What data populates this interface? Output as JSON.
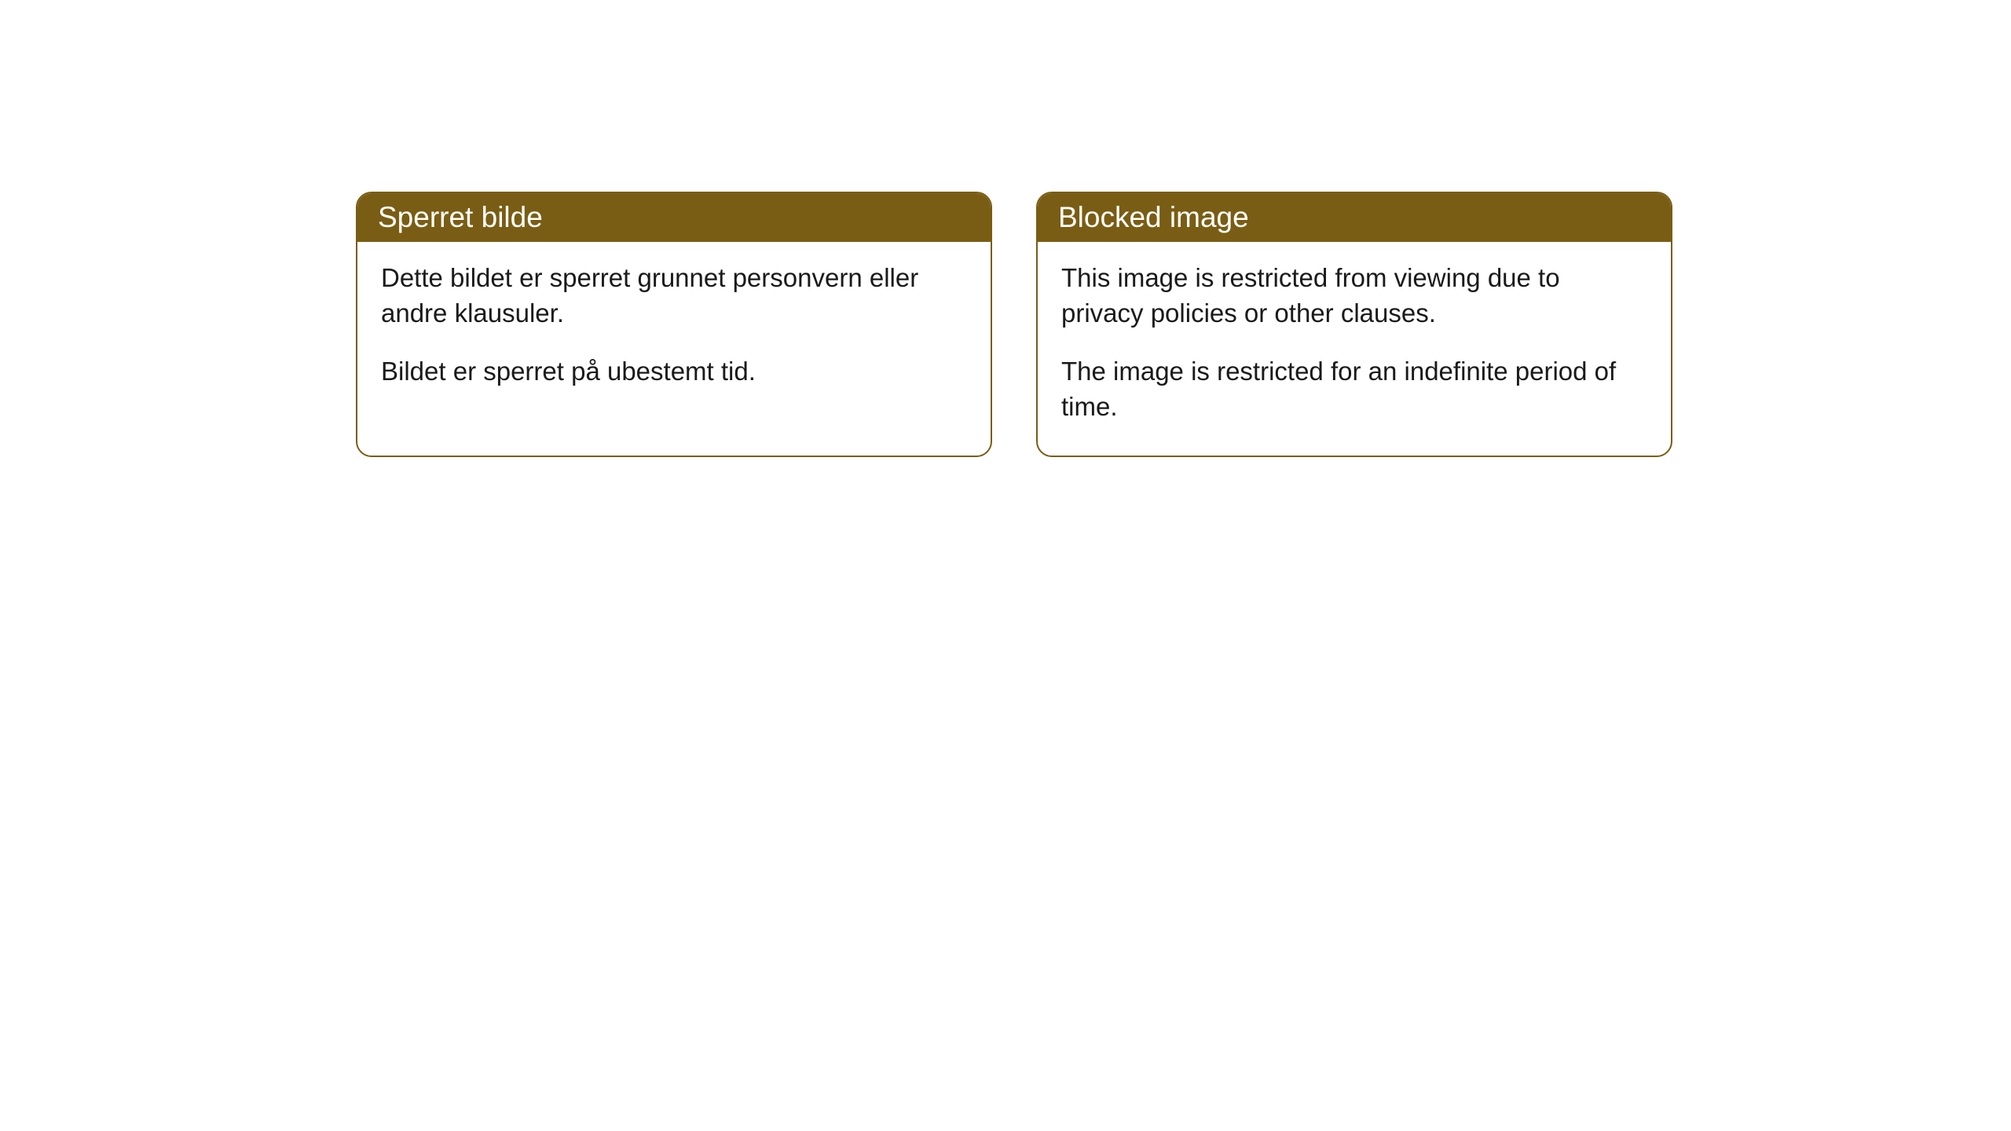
{
  "cards": [
    {
      "title": "Sperret bilde",
      "paragraph1": "Dette bildet er sperret grunnet personvern eller andre klausuler.",
      "paragraph2": "Bildet er sperret på ubestemt tid."
    },
    {
      "title": "Blocked image",
      "paragraph1": "This image is restricted from viewing due to privacy policies or other clauses.",
      "paragraph2": "The image is restricted for an indefinite period of time."
    }
  ],
  "styling": {
    "header_background": "#7a5d14",
    "header_text_color": "#ffffff",
    "border_color": "#7a5d14",
    "card_background": "#ffffff",
    "body_text_color": "#1a1a1a",
    "border_radius": 20,
    "title_fontsize": 37,
    "body_fontsize": 33
  }
}
